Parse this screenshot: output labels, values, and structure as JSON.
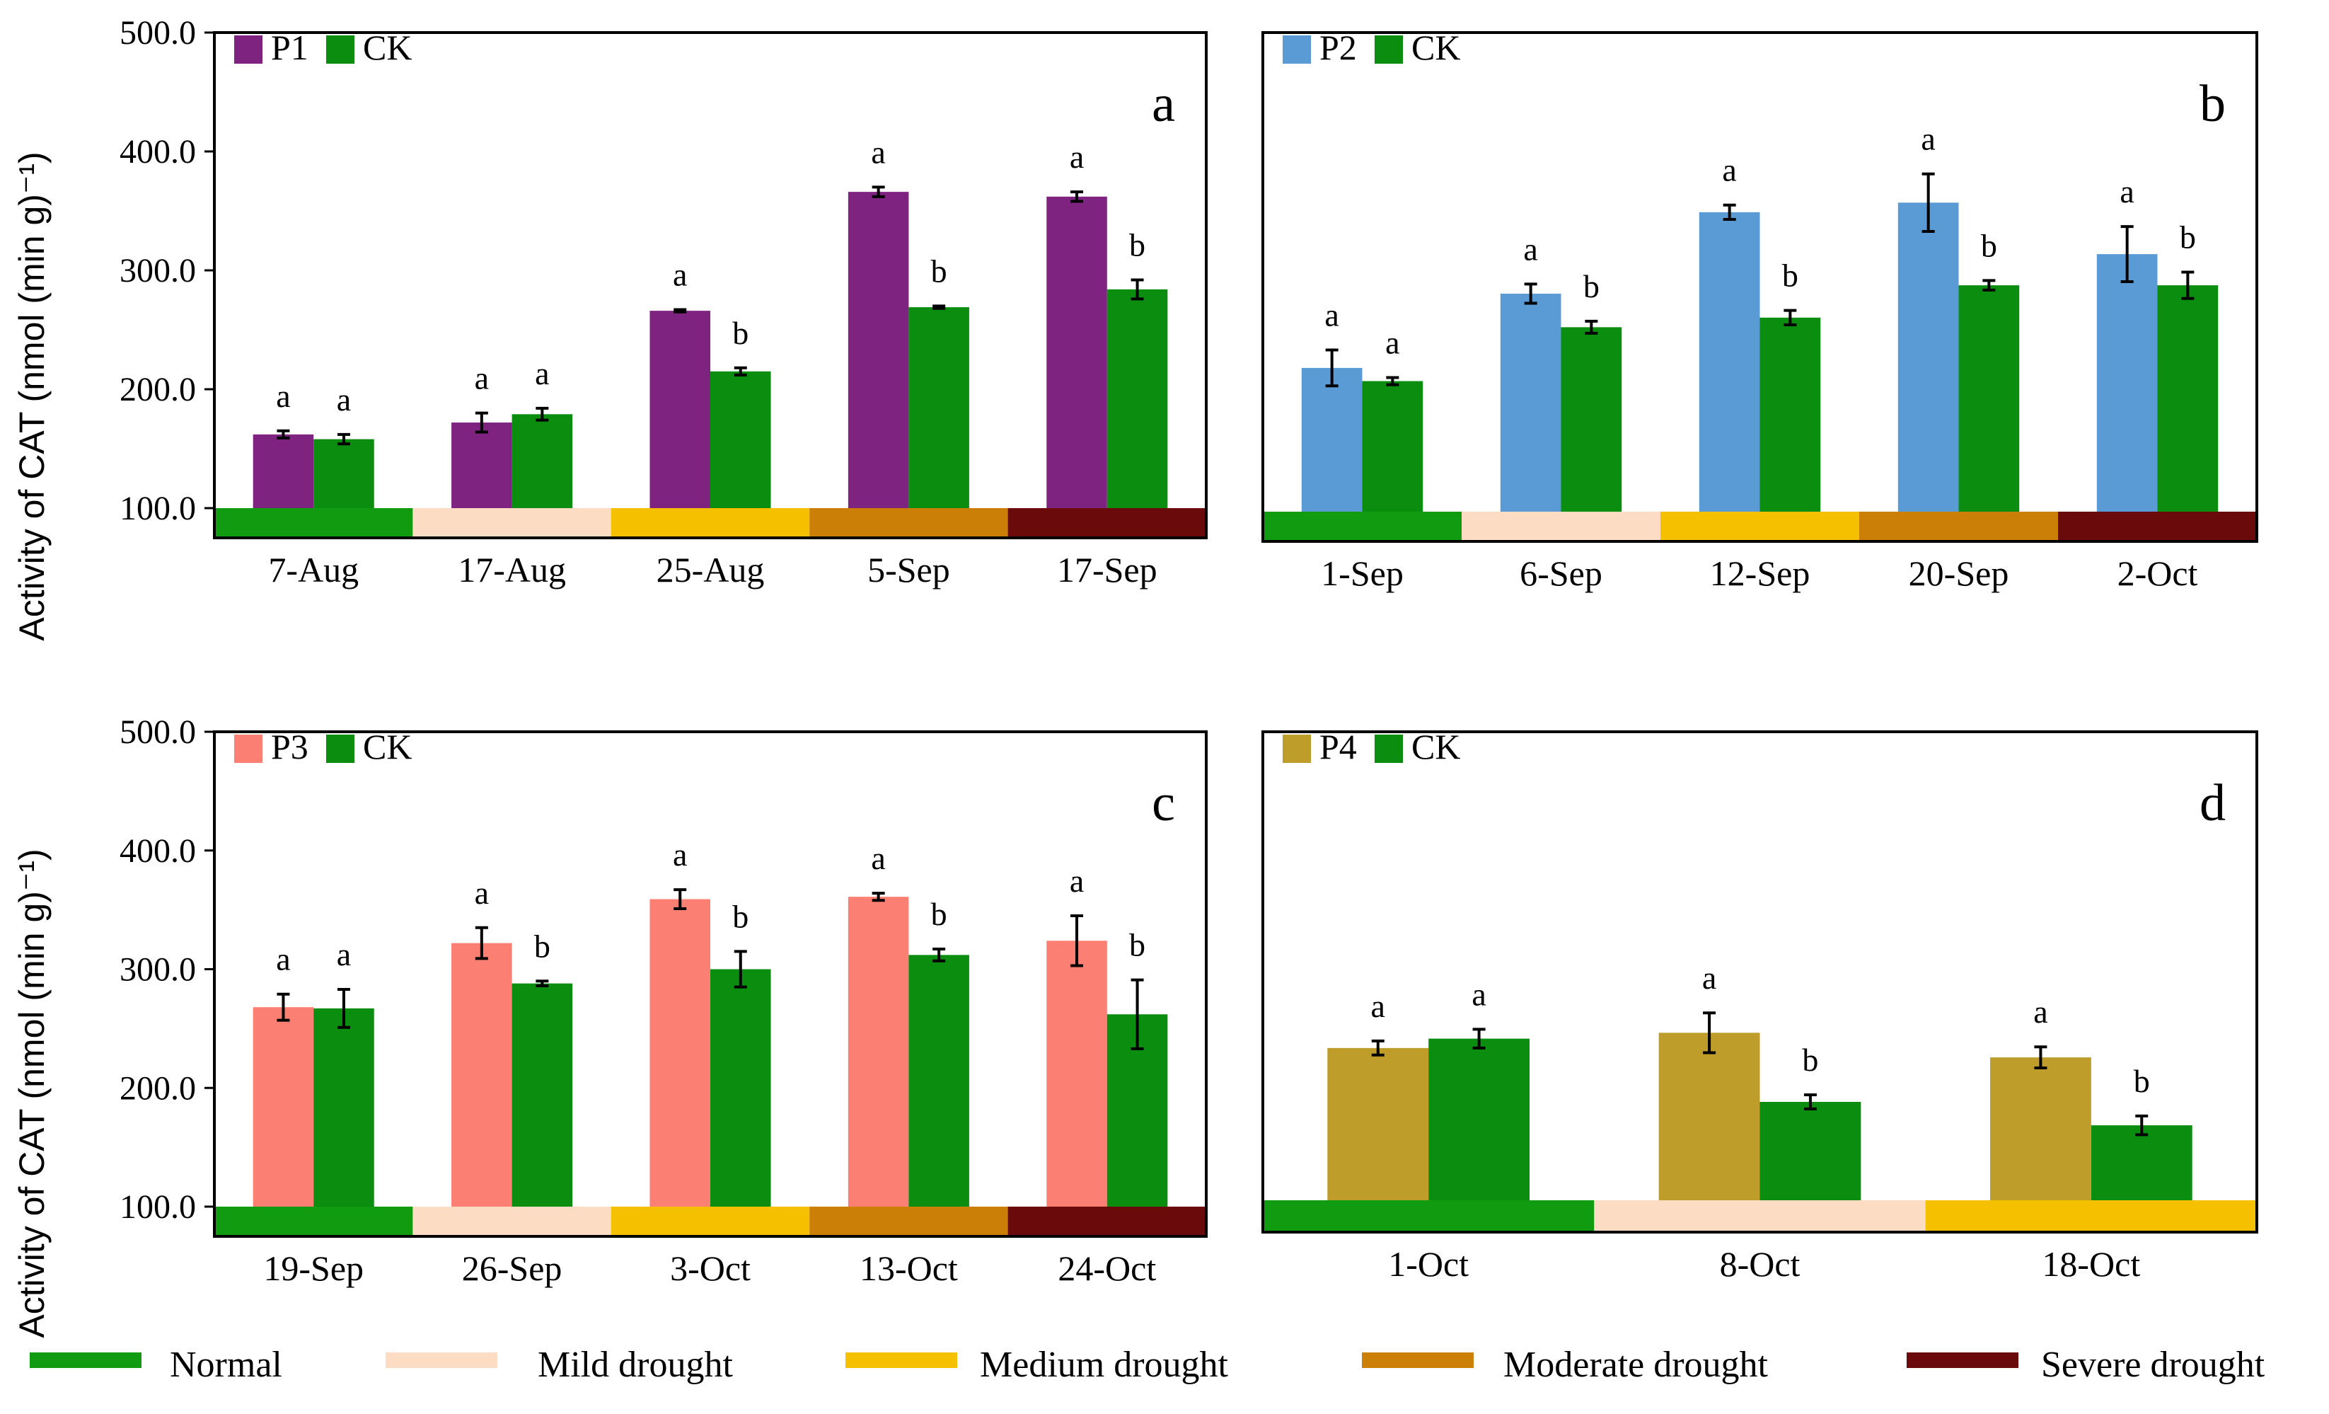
{
  "figure": {
    "y_axis_label": "Activity of  CAT  (nmol (min g)⁻¹)",
    "legend": [
      {
        "name": "Normal",
        "color": "#119b11"
      },
      {
        "name": "Mild drought",
        "color": "#fcdcc2"
      },
      {
        "name": "Medium drought",
        "color": "#f5c000"
      },
      {
        "name": "Moderate drought",
        "color": "#cc7f06"
      },
      {
        "name": "Severe drought",
        "color": "#6b0a0a"
      }
    ]
  },
  "chart_data": [
    {
      "type": "bar",
      "panel_label": "a",
      "ylim": [
        100,
        500
      ],
      "yticks": [
        "100.0",
        "200.0",
        "300.0",
        "400.0",
        "500.0"
      ],
      "categories": [
        "7-Aug",
        "17-Aug",
        "25-Aug",
        "5-Sep",
        "17-Sep"
      ],
      "drought_levels": [
        "Normal",
        "Mild drought",
        "Medium drought",
        "Moderate drought",
        "Severe drought"
      ],
      "series": [
        {
          "name": "P1",
          "color": "#7e2380",
          "values": [
            162,
            172,
            266,
            366,
            362
          ],
          "errors": [
            3,
            8,
            1,
            4,
            4
          ],
          "letters": [
            "a",
            "a",
            "a",
            "a",
            "a"
          ]
        },
        {
          "name": "CK",
          "color": "#0b8e10",
          "values": [
            158,
            179,
            215,
            269,
            284
          ],
          "errors": [
            4,
            5,
            3,
            1,
            8
          ],
          "letters": [
            "a",
            "a",
            "b",
            "b",
            "b"
          ]
        }
      ]
    },
    {
      "type": "bar",
      "panel_label": "b",
      "ylim": [
        100,
        500
      ],
      "yticks": [
        "100.0",
        "200.0",
        "300.0",
        "400.0",
        "500.0"
      ],
      "categories": [
        "1-Sep",
        "6-Sep",
        "12-Sep",
        "20-Sep",
        "2-Oct"
      ],
      "drought_levels": [
        "Normal",
        "Mild drought",
        "Medium drought",
        "Moderate drought",
        "Severe drought"
      ],
      "series": [
        {
          "name": "P2",
          "color": "#5b9bd5",
          "values": [
            220,
            282,
            350,
            358,
            315
          ],
          "errors": [
            15,
            8,
            6,
            24,
            23
          ],
          "letters": [
            "a",
            "a",
            "a",
            "a",
            "a"
          ]
        },
        {
          "name": "CK",
          "color": "#0b8e10",
          "values": [
            209,
            254,
            262,
            289,
            289
          ],
          "errors": [
            3,
            5,
            6,
            4,
            11
          ],
          "letters": [
            "a",
            "b",
            "b",
            "b",
            "b"
          ]
        }
      ]
    },
    {
      "type": "bar",
      "panel_label": "c",
      "ylim": [
        100,
        500
      ],
      "yticks": [
        "100.0",
        "200.0",
        "300.0",
        "400.0",
        "500.0"
      ],
      "categories": [
        "19-Sep",
        "26-Sep",
        "3-Oct",
        "13-Oct",
        "24-Oct"
      ],
      "drought_levels": [
        "Normal",
        "Mild drought",
        "Medium drought",
        "Moderate drought",
        "Severe drought"
      ],
      "series": [
        {
          "name": "P3",
          "color": "#fb7f72",
          "values": [
            268,
            322,
            359,
            361,
            324
          ],
          "errors": [
            11,
            13,
            8,
            3,
            21
          ],
          "letters": [
            "a",
            "a",
            "a",
            "a",
            "a"
          ]
        },
        {
          "name": "CK",
          "color": "#0b8e10",
          "values": [
            267,
            288,
            300,
            312,
            262
          ],
          "errors": [
            16,
            2,
            15,
            5,
            29
          ],
          "letters": [
            "a",
            "b",
            "b",
            "b",
            "b"
          ]
        }
      ]
    },
    {
      "type": "bar",
      "panel_label": "d",
      "ylim": [
        100,
        500
      ],
      "yticks": [
        "100.0",
        "200.0",
        "300.0",
        "400.0",
        "500.0"
      ],
      "categories": [
        "1-Oct",
        "8-Oct",
        "18-Oct"
      ],
      "drought_levels": [
        "Normal",
        "Mild drought",
        "Medium drought"
      ],
      "series": [
        {
          "name": "P4",
          "color": "#bf9d2a",
          "values": [
            230,
            243,
            222
          ],
          "errors": [
            6,
            17,
            9
          ],
          "letters": [
            "a",
            "a",
            "a"
          ]
        },
        {
          "name": "CK",
          "color": "#0b8e10",
          "values": [
            238,
            184,
            164
          ],
          "errors": [
            8,
            6,
            8
          ],
          "letters": [
            "a",
            "b",
            "b"
          ]
        }
      ]
    }
  ]
}
